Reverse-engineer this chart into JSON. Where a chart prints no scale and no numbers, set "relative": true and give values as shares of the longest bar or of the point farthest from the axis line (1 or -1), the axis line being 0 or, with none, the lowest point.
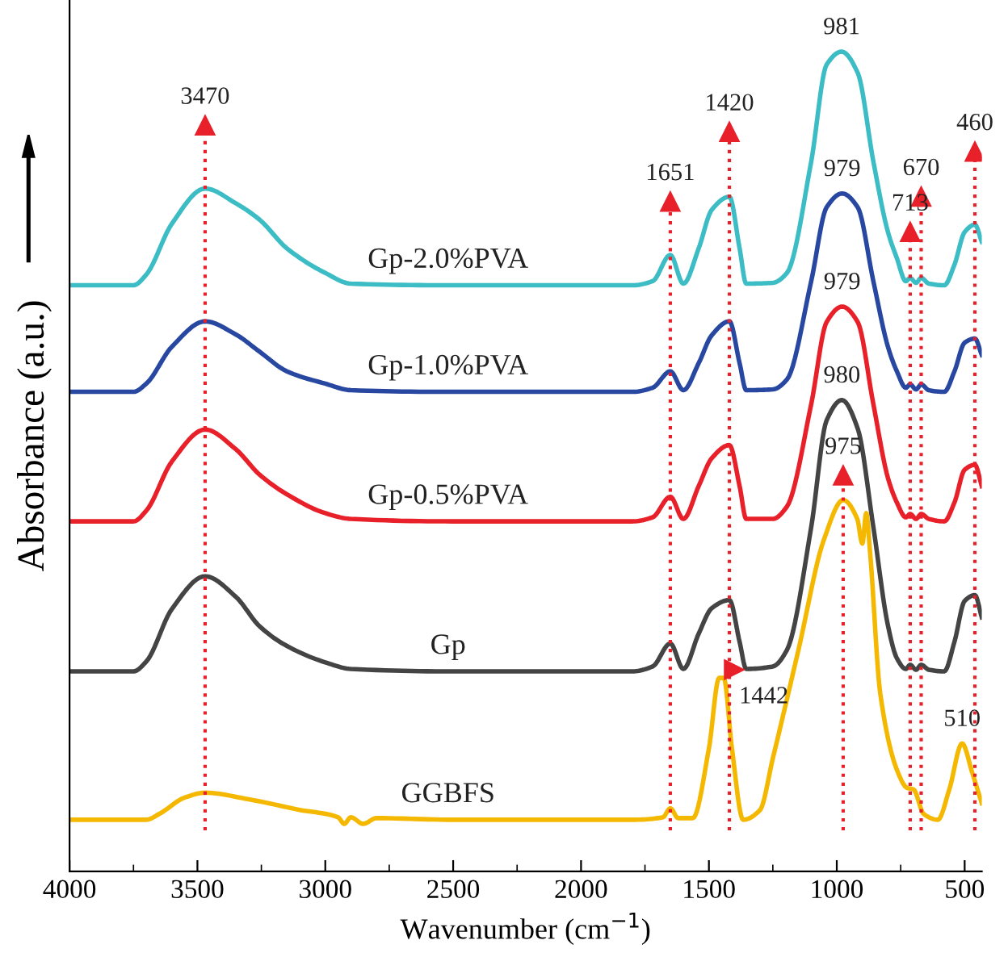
{
  "chart_data": {
    "type": "line",
    "relative": true,
    "xlabel": "Wavenumber (cm$^{−1}$)",
    "ylabel": "Absorbance (a.u.)",
    "xlim": [
      4000,
      433
    ],
    "xticks": [
      4000,
      3500,
      3000,
      2500,
      2000,
      1500,
      1000,
      500
    ],
    "grid": false,
    "marker": "none",
    "line_style": "solid",
    "series": [
      {
        "name": "Gp-2.0%PVA",
        "color": "#3cbcc4",
        "x": [
          4000,
          3750,
          3700,
          3600,
          3470,
          3350,
          3257,
          3150,
          3000,
          2900,
          2500,
          1800,
          1720,
          1651,
          1600,
          1540,
          1489,
          1420,
          1380,
          1354,
          1250,
          1195,
          1100,
          1040,
          981,
          918,
          857,
          800,
          765,
          730,
          713,
          690,
          670,
          640,
          580,
          540,
          500,
          460,
          433
        ],
        "values": [
          0.715,
          0.715,
          0.728,
          0.79,
          0.833,
          0.815,
          0.795,
          0.76,
          0.73,
          0.717,
          0.715,
          0.715,
          0.72,
          0.752,
          0.717,
          0.76,
          0.807,
          0.823,
          0.76,
          0.717,
          0.718,
          0.73,
          0.866,
          0.984,
          1.0,
          0.974,
          0.866,
          0.78,
          0.748,
          0.72,
          0.724,
          0.718,
          0.724,
          0.717,
          0.715,
          0.74,
          0.78,
          0.789,
          0.768
        ]
      },
      {
        "name": "Gp-1.0%PVA",
        "color": "#2747a0",
        "x": [
          4000,
          3750,
          3700,
          3600,
          3470,
          3350,
          3257,
          3150,
          3000,
          2900,
          2500,
          1800,
          1720,
          1651,
          1600,
          1540,
          1489,
          1420,
          1380,
          1354,
          1250,
          1195,
          1100,
          1040,
          979,
          918,
          857,
          800,
          765,
          730,
          713,
          690,
          670,
          640,
          580,
          540,
          500,
          460,
          433
        ],
        "values": [
          0.585,
          0.585,
          0.595,
          0.64,
          0.671,
          0.655,
          0.634,
          0.61,
          0.595,
          0.587,
          0.585,
          0.585,
          0.59,
          0.61,
          0.587,
          0.62,
          0.654,
          0.671,
          0.62,
          0.587,
          0.588,
          0.6,
          0.72,
          0.81,
          0.827,
          0.81,
          0.72,
          0.64,
          0.61,
          0.59,
          0.594,
          0.588,
          0.594,
          0.587,
          0.585,
          0.61,
          0.645,
          0.65,
          0.63
        ]
      },
      {
        "name": "Gp-0.5%PVA",
        "color": "#e8202a",
        "x": [
          4000,
          3750,
          3700,
          3600,
          3470,
          3350,
          3257,
          3150,
          3000,
          2900,
          2500,
          1800,
          1720,
          1651,
          1600,
          1540,
          1489,
          1420,
          1380,
          1354,
          1250,
          1195,
          1100,
          1040,
          979,
          918,
          857,
          800,
          765,
          730,
          713,
          690,
          670,
          640,
          580,
          540,
          500,
          460,
          433
        ],
        "values": [
          0.427,
          0.427,
          0.44,
          0.5,
          0.539,
          0.515,
          0.484,
          0.46,
          0.437,
          0.43,
          0.427,
          0.427,
          0.432,
          0.457,
          0.43,
          0.47,
          0.504,
          0.52,
          0.47,
          0.43,
          0.43,
          0.445,
          0.57,
          0.67,
          0.689,
          0.67,
          0.57,
          0.48,
          0.45,
          0.432,
          0.436,
          0.43,
          0.436,
          0.43,
          0.427,
          0.45,
          0.49,
          0.496,
          0.47
        ]
      },
      {
        "name": "Gp",
        "color": "#444444",
        "x": [
          4000,
          3750,
          3700,
          3600,
          3470,
          3350,
          3257,
          3150,
          3000,
          2900,
          2500,
          1800,
          1720,
          1651,
          1600,
          1540,
          1489,
          1420,
          1380,
          1354,
          1250,
          1195,
          1100,
          1040,
          980,
          918,
          857,
          800,
          765,
          730,
          713,
          690,
          670,
          640,
          580,
          540,
          500,
          460,
          433
        ],
        "values": [
          0.244,
          0.244,
          0.256,
          0.32,
          0.36,
          0.335,
          0.299,
          0.275,
          0.255,
          0.247,
          0.244,
          0.244,
          0.25,
          0.278,
          0.247,
          0.29,
          0.321,
          0.331,
          0.28,
          0.247,
          0.25,
          0.27,
          0.42,
          0.55,
          0.575,
          0.54,
          0.42,
          0.3,
          0.26,
          0.247,
          0.252,
          0.246,
          0.252,
          0.246,
          0.244,
          0.28,
          0.33,
          0.337,
          0.31
        ]
      },
      {
        "name": "GGBFS",
        "color": "#f5b800",
        "x": [
          4000,
          3700,
          3650,
          3550,
          3470,
          3300,
          3100,
          2950,
          2926,
          2900,
          2852,
          2800,
          2500,
          1800,
          1680,
          1651,
          1620,
          1563,
          1500,
          1460,
          1442,
          1410,
          1366,
          1300,
          1250,
          1150,
          1050,
          975,
          920,
          900,
          885,
          870,
          830,
          760,
          726,
          700,
          660,
          605,
          560,
          510,
          470,
          433
        ],
        "values": [
          0.063,
          0.063,
          0.07,
          0.09,
          0.096,
          0.088,
          0.075,
          0.066,
          0.058,
          0.066,
          0.058,
          0.065,
          0.063,
          0.063,
          0.066,
          0.077,
          0.065,
          0.065,
          0.15,
          0.236,
          0.236,
          0.15,
          0.063,
          0.075,
          0.138,
          0.27,
          0.405,
          0.453,
          0.43,
          0.4,
          0.437,
          0.39,
          0.217,
          0.12,
          0.102,
          0.1,
          0.07,
          0.063,
          0.1,
          0.156,
          0.12,
          0.083
        ]
      }
    ],
    "ref_lines": [
      {
        "axis": "x",
        "value": 3470,
        "color": "#e8202a",
        "line_style": "dotted"
      },
      {
        "axis": "x",
        "value": 1651,
        "color": "#e8202a",
        "line_style": "dotted"
      },
      {
        "axis": "x",
        "value": 1420,
        "color": "#e8202a",
        "line_style": "dotted"
      },
      {
        "axis": "x",
        "value": 975,
        "color": "#e8202a",
        "line_style": "dotted"
      },
      {
        "axis": "x",
        "value": 713,
        "color": "#e8202a",
        "line_style": "dotted"
      },
      {
        "axis": "x",
        "value": 670,
        "color": "#e8202a",
        "line_style": "dotted"
      },
      {
        "axis": "x",
        "value": 460,
        "color": "#e8202a",
        "line_style": "dotted"
      }
    ],
    "annotations": [
      {
        "text": "3470",
        "x": 3470,
        "y": 0.88
      },
      {
        "text": "1651",
        "x": 1651,
        "y": 0.787
      },
      {
        "text": "1420",
        "x": 1420,
        "y": 0.872
      },
      {
        "text": "981",
        "x": 981,
        "y": 1.0
      },
      {
        "text": "979",
        "x": 979,
        "y": 0.827
      },
      {
        "text": "979",
        "x": 979,
        "y": 0.689
      },
      {
        "text": "980",
        "x": 980,
        "y": 0.575
      },
      {
        "text": "975",
        "x": 975,
        "y": 0.453
      },
      {
        "text": "713",
        "x": 713,
        "y": 0.75
      },
      {
        "text": "670",
        "x": 670,
        "y": 0.793
      },
      {
        "text": "460",
        "x": 460,
        "y": 0.848
      },
      {
        "text": "1442",
        "x": 1442,
        "y": 0.236
      },
      {
        "text": "510",
        "x": 510,
        "y": 0.156
      }
    ]
  }
}
